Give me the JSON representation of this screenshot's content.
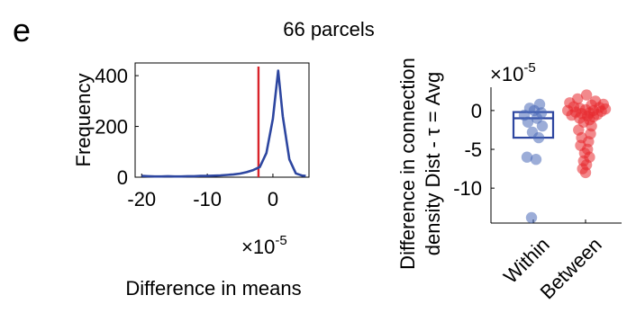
{
  "panel_label": "e",
  "figure_title": "66 parcels",
  "chart_data": [
    {
      "type": "line",
      "xlabel": "Difference in means",
      "ylabel": "Frequency",
      "x_exponent_base": "×10",
      "x_exponent_power": "-5",
      "xlim": [
        -21,
        5.5
      ],
      "ylim": [
        0,
        450
      ],
      "xticks": [
        -20,
        -10,
        0
      ],
      "yticks": [
        0,
        200,
        400
      ],
      "xtick_labels": [
        "-20",
        "-10",
        "0"
      ],
      "ytick_labels": [
        "0",
        "200",
        "400"
      ],
      "series": [
        {
          "color": "#2d46a0",
          "x": [
            -20,
            -19,
            -18,
            -17,
            -16,
            -15,
            -14,
            -13,
            -12,
            -11,
            -10,
            -9,
            -8,
            -7,
            -6,
            -5,
            -4,
            -3,
            -2,
            -1,
            0,
            0.8,
            1.5,
            2.5,
            3.5,
            4.5,
            5
          ],
          "y": [
            5,
            4,
            3,
            3,
            4,
            3,
            3,
            4,
            4,
            5,
            5,
            6,
            7,
            9,
            11,
            14,
            20,
            28,
            40,
            95,
            230,
            420,
            240,
            70,
            15,
            6,
            5
          ]
        }
      ],
      "vline": {
        "x": -2.2,
        "color": "#d9232a"
      }
    },
    {
      "type": "scatter",
      "ylabel_line1": "Difference in connection",
      "ylabel_line2": "density Dist - τ = Avg",
      "y_exponent_base": "×10",
      "y_exponent_power": "-5",
      "categories": [
        "Within",
        "Between"
      ],
      "ylim": [
        -14.5,
        3
      ],
      "yticks": [
        0,
        -5,
        -10
      ],
      "ytick_labels": [
        "0",
        "-5",
        "-10"
      ],
      "box": {
        "category": "Within",
        "q1": -3.5,
        "median": -1.0,
        "q3": -0.2,
        "color": "#2d46a0"
      },
      "series": [
        {
          "name": "Within",
          "color": "#4a6ab8",
          "y": [
            0.8,
            0.3,
            0.0,
            -0.3,
            -0.6,
            -1.0,
            -1.5,
            -2.0,
            -2.8,
            -3.5,
            -6.0,
            -6.3,
            -13.8
          ],
          "jitter": [
            0.35,
            -0.2,
            0.05,
            0.45,
            -0.5,
            0.2,
            -0.3,
            0.5,
            -0.05,
            0.3,
            -0.35,
            0.15,
            -0.1
          ]
        },
        {
          "name": "Between",
          "color": "#e8282d",
          "y": [
            2.0,
            1.5,
            1.2,
            1.0,
            0.8,
            0.7,
            0.5,
            0.4,
            0.3,
            0.2,
            0.1,
            0.0,
            0.0,
            -0.1,
            -0.2,
            -0.3,
            -0.4,
            -0.5,
            -0.6,
            -0.7,
            -0.8,
            -1.0,
            -1.2,
            -1.5,
            -2.0,
            -2.5,
            -3.0,
            -3.5,
            -4.0,
            -4.5,
            -5.0,
            -5.5,
            -6.0,
            -6.5,
            -7.0,
            -7.5,
            -8.0
          ],
          "jitter": [
            0.05,
            -0.4,
            0.5,
            -0.8,
            0.9,
            0.3,
            -0.6,
            0.7,
            -0.3,
            1.0,
            0.0,
            -0.9,
            0.4,
            0.8,
            -0.5,
            0.2,
            -0.2,
            0.6,
            -0.7,
            0.1,
            0.4,
            -0.3,
            0.2,
            -0.1,
            0.3,
            -0.35,
            0.25,
            -0.2,
            0.15,
            -0.25,
            0.1,
            -0.05,
            0.2,
            -0.1,
            0.05,
            -0.15,
            0.0
          ]
        }
      ]
    }
  ]
}
